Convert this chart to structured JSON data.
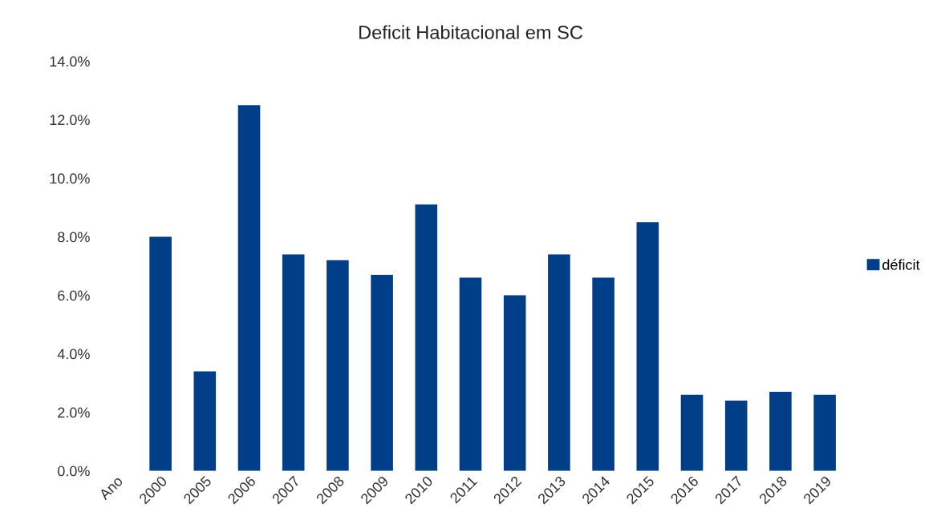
{
  "chart_data": {
    "type": "bar",
    "title": "Deficit Habitacional em SC",
    "categories": [
      "Ano",
      "2000",
      "2005",
      "2006",
      "2007",
      "2008",
      "2009",
      "2010",
      "2011",
      "2012",
      "2013",
      "2014",
      "2015",
      "2016",
      "2017",
      "2018",
      "2019"
    ],
    "series": [
      {
        "name": "déficit",
        "color": "#003f87",
        "values": [
          null,
          8.0,
          3.4,
          12.5,
          7.4,
          7.2,
          6.7,
          9.1,
          6.6,
          6.0,
          7.4,
          6.6,
          8.5,
          2.6,
          2.4,
          2.7,
          2.6
        ]
      }
    ],
    "ylim": [
      0,
      14
    ],
    "yticks": [
      {
        "value": 0,
        "label": "0.0%"
      },
      {
        "value": 2,
        "label": "2.0%"
      },
      {
        "value": 4,
        "label": "4.0%"
      },
      {
        "value": 6,
        "label": "6.0%"
      },
      {
        "value": 8,
        "label": "8.0%"
      },
      {
        "value": 10,
        "label": "10.0%"
      },
      {
        "value": 12,
        "label": "12.0%"
      },
      {
        "value": 14,
        "label": "14.0%"
      }
    ],
    "grid": false,
    "legend": "right"
  }
}
